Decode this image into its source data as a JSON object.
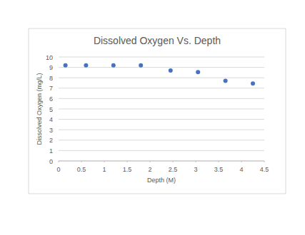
{
  "chart_data": {
    "type": "scatter",
    "title": "Dissolved Oxygen Vs. Depth",
    "xlabel": "Depth (M)",
    "ylabel": "Dissolved Oxygen (mg/L)",
    "x": [
      0.15,
      0.6,
      1.2,
      1.8,
      2.45,
      3.05,
      3.65,
      4.25
    ],
    "values": [
      9.2,
      9.2,
      9.2,
      9.2,
      8.7,
      8.55,
      7.7,
      7.45
    ],
    "color": "#4472c4",
    "marker": "circle",
    "xlim": [
      0,
      4.5
    ],
    "xticks": [
      0,
      0.5,
      1,
      1.5,
      2,
      2.5,
      3,
      3.5,
      4,
      4.5
    ],
    "ylim": [
      0,
      10
    ],
    "yticks": [
      0,
      1,
      2,
      3,
      4,
      5,
      6,
      7,
      8,
      9,
      10
    ],
    "grid": true
  }
}
